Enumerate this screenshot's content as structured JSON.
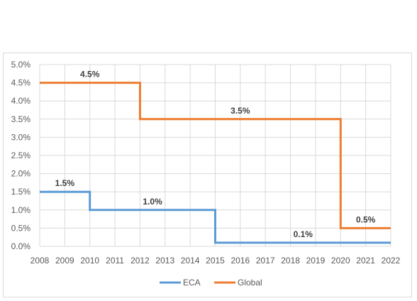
{
  "chart_data": {
    "type": "line",
    "step": true,
    "x": [
      2008,
      2009,
      2010,
      2011,
      2012,
      2013,
      2014,
      2015,
      2016,
      2017,
      2018,
      2019,
      2020,
      2021,
      2022
    ],
    "series": [
      {
        "name": "ECA",
        "color": "#5b9bd5",
        "points": [
          [
            2008,
            1.5
          ],
          [
            2010,
            1.5
          ],
          [
            2010,
            1.0
          ],
          [
            2015,
            1.0
          ],
          [
            2015,
            0.1
          ],
          [
            2022,
            0.1
          ]
        ],
        "labels": [
          {
            "text": "1.5%",
            "x": 2009,
            "y": 1.5
          },
          {
            "text": "1.0%",
            "x": 2012.5,
            "y": 1.0
          },
          {
            "text": "0.1%",
            "x": 2018.5,
            "y": 0.1
          }
        ]
      },
      {
        "name": "Global",
        "color": "#ed7d31",
        "points": [
          [
            2008,
            4.5
          ],
          [
            2012,
            4.5
          ],
          [
            2012,
            3.5
          ],
          [
            2020,
            3.5
          ],
          [
            2020,
            0.5
          ],
          [
            2022,
            0.5
          ]
        ],
        "labels": [
          {
            "text": "4.5%",
            "x": 2010,
            "y": 4.5
          },
          {
            "text": "3.5%",
            "x": 2016,
            "y": 3.5
          },
          {
            "text": "0.5%",
            "x": 2021,
            "y": 0.5
          }
        ]
      }
    ],
    "yticks": [
      "0.0%",
      "0.5%",
      "1.0%",
      "1.5%",
      "2.0%",
      "2.5%",
      "3.0%",
      "3.5%",
      "4.0%",
      "4.5%",
      "5.0%"
    ],
    "ylim": [
      0,
      5
    ],
    "xlim": [
      2008,
      2022
    ],
    "grid": true,
    "legend": "bottom",
    "title": "",
    "xlabel": "",
    "ylabel": ""
  }
}
